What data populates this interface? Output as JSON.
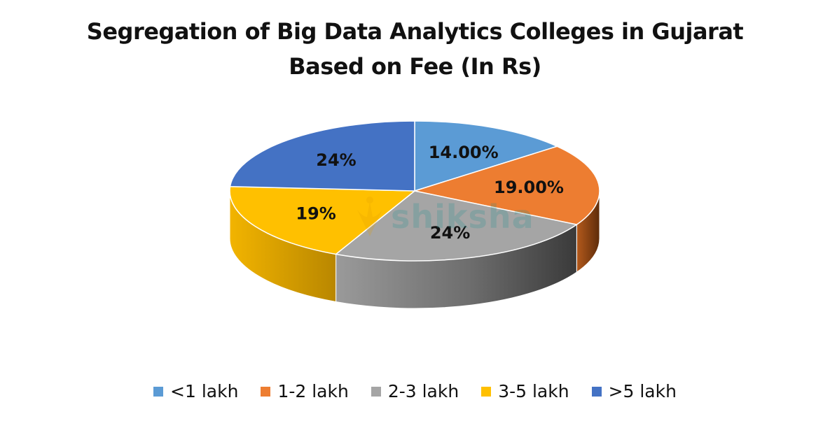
{
  "chart_data": {
    "type": "pie",
    "title_lines": [
      "Segregation of Big Data Analytics Colleges in Gujarat",
      "Based on Fee (In Rs)"
    ],
    "categories": [
      "<1 lakh",
      "1-2 lakh",
      "2-3 lakh",
      "3-5 lakh",
      ">5 lakh"
    ],
    "values": [
      14,
      19,
      24,
      19,
      24
    ],
    "data_labels": [
      "14.00%",
      "19.00%",
      "24%",
      "19%",
      "24%"
    ],
    "colors": [
      "#5B9BD5",
      "#ED7D31",
      "#A5A5A5",
      "#FFC000",
      "#4472C4"
    ],
    "style": "3d",
    "legend_position": "bottom"
  },
  "watermark": {
    "text": "shiksha",
    "icon": "shiksha-logo-icon"
  }
}
